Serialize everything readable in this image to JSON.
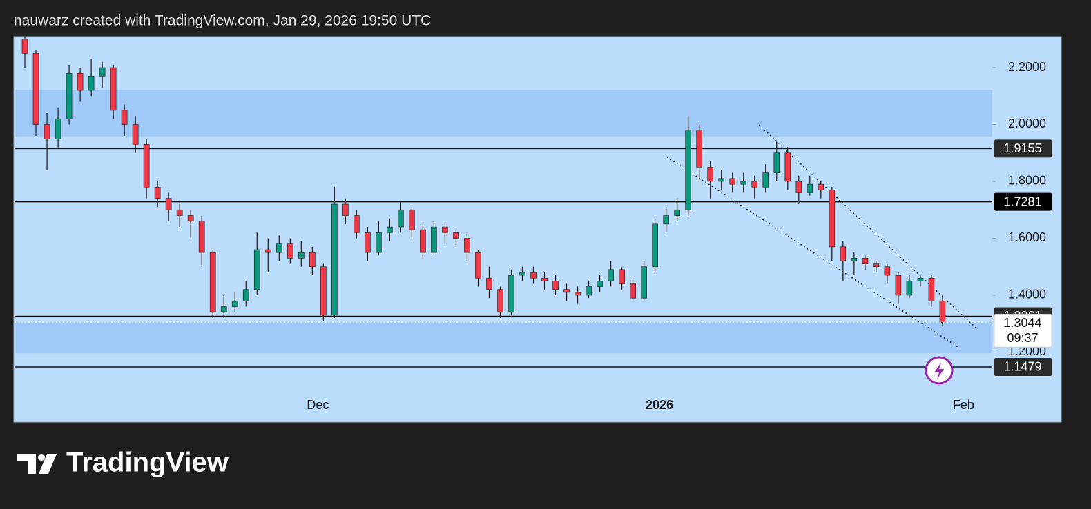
{
  "header": {
    "text": "nauwarz created with TradingView.com, Jan 29, 2026 19:50 UTC"
  },
  "footer": {
    "brand": "TradingView"
  },
  "chart_data": {
    "type": "candlestick",
    "ylim": [
      1.0436,
      2.3091
    ],
    "yticks": [
      {
        "value": 1.2,
        "label": "1.2000"
      },
      {
        "value": 1.4,
        "label": "1.4000"
      },
      {
        "value": 1.6,
        "label": "1.6000"
      },
      {
        "value": 1.8,
        "label": "1.8000"
      },
      {
        "value": 2.0,
        "label": "2.0000"
      },
      {
        "value": 2.2,
        "label": "2.2000"
      }
    ],
    "xlim": [
      -1,
      87.5
    ],
    "xticks": [
      {
        "value": 26.5,
        "label": "Dec"
      },
      {
        "value": 57.4,
        "label": "2026"
      },
      {
        "value": 84.9,
        "label": "Feb"
      }
    ],
    "up_color": "#089981",
    "down_color": "#f23645",
    "open": [
      2.3,
      2.25,
      2.0,
      1.95,
      2.02,
      2.18,
      2.12,
      2.17,
      2.2,
      2.05,
      2.0,
      1.93,
      1.78,
      1.74,
      1.7,
      1.68,
      1.66,
      1.55,
      1.34,
      1.36,
      1.38,
      1.42,
      1.56,
      1.55,
      1.58,
      1.53,
      1.55,
      1.5,
      1.33,
      1.72,
      1.68,
      1.62,
      1.55,
      1.62,
      1.64,
      1.7,
      1.63,
      1.55,
      1.64,
      1.62,
      1.6,
      1.55,
      1.46,
      1.42,
      1.34,
      1.47,
      1.48,
      1.46,
      1.45,
      1.42,
      1.41,
      1.4,
      1.43,
      1.45,
      1.49,
      1.44,
      1.39,
      1.5,
      1.65,
      1.68,
      1.7,
      1.98,
      1.85,
      1.8,
      1.81,
      1.79,
      1.8,
      1.78,
      1.83,
      1.9,
      1.8,
      1.76,
      1.79,
      1.77,
      1.57,
      1.52,
      1.53,
      1.51,
      1.5,
      1.47,
      1.4,
      1.45,
      1.46,
      1.38
    ],
    "high": [
      2.31,
      2.26,
      2.04,
      2.06,
      2.21,
      2.2,
      2.23,
      2.22,
      2.21,
      2.07,
      2.03,
      1.95,
      1.8,
      1.76,
      1.73,
      1.7,
      1.68,
      1.56,
      1.4,
      1.41,
      1.45,
      1.62,
      1.6,
      1.61,
      1.6,
      1.59,
      1.57,
      1.51,
      1.78,
      1.74,
      1.7,
      1.64,
      1.66,
      1.67,
      1.73,
      1.71,
      1.65,
      1.66,
      1.65,
      1.63,
      1.62,
      1.56,
      1.5,
      1.43,
      1.49,
      1.5,
      1.5,
      1.48,
      1.47,
      1.44,
      1.43,
      1.45,
      1.47,
      1.52,
      1.5,
      1.46,
      1.52,
      1.67,
      1.71,
      1.74,
      2.03,
      2.0,
      1.87,
      1.84,
      1.83,
      1.83,
      1.82,
      1.86,
      1.94,
      1.92,
      1.82,
      1.82,
      1.8,
      1.78,
      1.59,
      1.55,
      1.54,
      1.52,
      1.51,
      1.48,
      1.47,
      1.47,
      1.47,
      1.4
    ],
    "low": [
      2.2,
      1.96,
      1.84,
      1.92,
      2.0,
      2.08,
      2.1,
      2.13,
      2.02,
      1.96,
      1.9,
      1.74,
      1.71,
      1.66,
      1.64,
      1.6,
      1.5,
      1.32,
      1.32,
      1.34,
      1.36,
      1.4,
      1.48,
      1.52,
      1.51,
      1.5,
      1.47,
      1.31,
      1.32,
      1.65,
      1.6,
      1.52,
      1.54,
      1.59,
      1.62,
      1.6,
      1.53,
      1.54,
      1.58,
      1.57,
      1.52,
      1.43,
      1.39,
      1.32,
      1.33,
      1.45,
      1.44,
      1.42,
      1.4,
      1.38,
      1.37,
      1.39,
      1.41,
      1.43,
      1.42,
      1.38,
      1.38,
      1.48,
      1.62,
      1.66,
      1.68,
      1.8,
      1.74,
      1.77,
      1.76,
      1.76,
      1.74,
      1.76,
      1.8,
      1.77,
      1.72,
      1.75,
      1.74,
      1.52,
      1.45,
      1.47,
      1.49,
      1.48,
      1.44,
      1.37,
      1.39,
      1.43,
      1.36,
      1.29
    ],
    "close": [
      2.25,
      2.0,
      1.95,
      2.02,
      2.18,
      2.12,
      2.17,
      2.2,
      2.05,
      2.0,
      1.93,
      1.78,
      1.74,
      1.7,
      1.68,
      1.66,
      1.55,
      1.34,
      1.36,
      1.38,
      1.42,
      1.56,
      1.55,
      1.58,
      1.53,
      1.55,
      1.5,
      1.33,
      1.72,
      1.68,
      1.62,
      1.55,
      1.62,
      1.64,
      1.7,
      1.63,
      1.55,
      1.64,
      1.62,
      1.6,
      1.55,
      1.46,
      1.42,
      1.34,
      1.47,
      1.48,
      1.46,
      1.45,
      1.42,
      1.41,
      1.4,
      1.43,
      1.45,
      1.49,
      1.44,
      1.39,
      1.5,
      1.65,
      1.68,
      1.7,
      1.98,
      1.85,
      1.8,
      1.81,
      1.79,
      1.8,
      1.78,
      1.83,
      1.9,
      1.8,
      1.76,
      1.79,
      1.77,
      1.57,
      1.52,
      1.53,
      1.51,
      1.5,
      1.47,
      1.4,
      1.45,
      1.46,
      1.38,
      1.3044
    ],
    "zones": [
      [
        1.958,
        2.122
      ],
      [
        1.196,
        1.3055
      ]
    ],
    "zone_color": "#9fc9f7",
    "horizontal_lines": [
      1.9155,
      1.7281,
      1.3261,
      1.1479
    ],
    "trend_lines": [
      {
        "x": [
          66.4,
          86.2
        ],
        "y": [
          1.999,
          1.279
        ]
      },
      {
        "x": [
          58.1,
          84.6
        ],
        "y": [
          1.885,
          1.213
        ]
      }
    ],
    "last_price": 1.3044,
    "countdown": "09:37"
  }
}
